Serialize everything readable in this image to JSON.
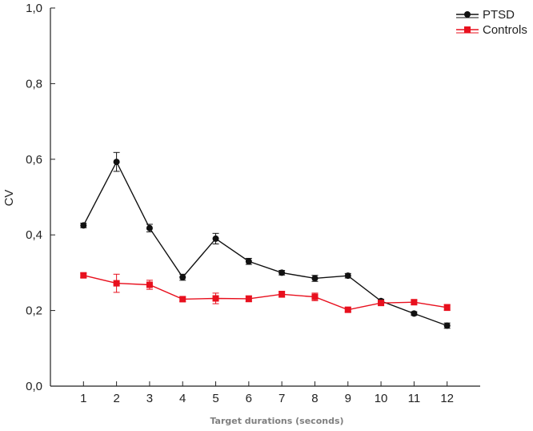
{
  "chart_data": {
    "type": "line",
    "title": "",
    "xlabel": "Target durations (seconds)",
    "ylabel": "CV",
    "x": [
      1,
      2,
      3,
      4,
      5,
      6,
      7,
      8,
      9,
      10,
      11,
      12
    ],
    "xlim": [
      0,
      13
    ],
    "ylim": [
      0,
      1
    ],
    "x_tick_labels": [
      "1",
      "2",
      "3",
      "4",
      "5",
      "6",
      "7",
      "8",
      "9",
      "10",
      "11",
      "12"
    ],
    "y_ticks": [
      0,
      0.2,
      0.4,
      0.6,
      0.8,
      1.0
    ],
    "y_tick_labels": [
      "0,0",
      "0,2",
      "0,4",
      "0,6",
      "0,8",
      "1,0"
    ],
    "grid": false,
    "legend_position": "top-right",
    "series": [
      {
        "name": "PTSD",
        "color": "#111111",
        "marker": "circle",
        "values": [
          0.425,
          0.593,
          0.418,
          0.288,
          0.39,
          0.33,
          0.3,
          0.285,
          0.292,
          0.225,
          0.192,
          0.16
        ],
        "errors": [
          0.006,
          0.025,
          0.01,
          0.008,
          0.014,
          0.008,
          0.006,
          0.008,
          0.006,
          0.005,
          0.005,
          0.007
        ]
      },
      {
        "name": "Controls",
        "color": "#e8101e",
        "marker": "square",
        "values": [
          0.293,
          0.272,
          0.268,
          0.23,
          0.232,
          0.231,
          0.243,
          0.236,
          0.202,
          0.22,
          0.222,
          0.208
        ],
        "errors": [
          0.006,
          0.024,
          0.012,
          0.006,
          0.014,
          0.008,
          0.008,
          0.01,
          0.006,
          0.006,
          0.006,
          0.008
        ]
      }
    ]
  }
}
